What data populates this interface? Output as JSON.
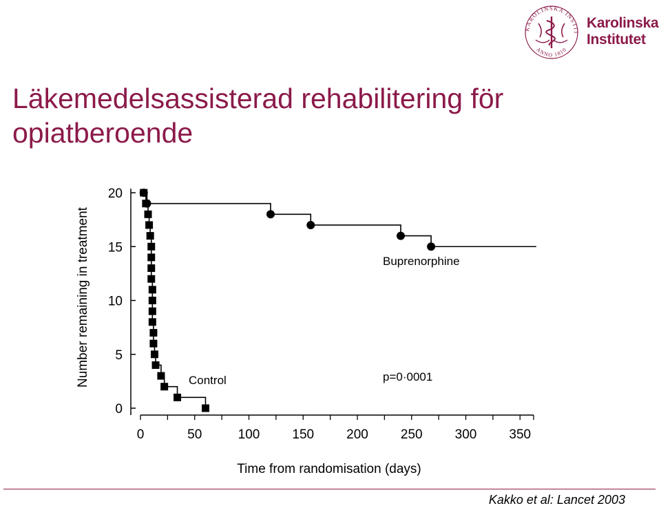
{
  "slide": {
    "title_line1": "Läkemedelsassisterad rehabilitering för",
    "title_line2": "opiatberoende",
    "citation": "Kakko et al: Lancet 2003",
    "accent_color": "#8b1a4a"
  },
  "logo": {
    "name_line1": "Karolinska",
    "name_line2": "Institutet",
    "seal_text": "KAROLINSKA INSTITUTET",
    "seal_year": "ANNO 1810",
    "seal_icon": "rod-of-asclepius-seal-icon"
  },
  "chart_data": {
    "type": "line",
    "step": true,
    "xlabel": "Time from randomisation (days)",
    "ylabel": "Number remaining in treatment",
    "xlim": [
      0,
      360
    ],
    "ylim": [
      0,
      20
    ],
    "xticks": [
      0,
      50,
      100,
      150,
      200,
      250,
      300,
      350
    ],
    "yticks": [
      0,
      5,
      10,
      15,
      20
    ],
    "grid": false,
    "annotation": "p=0·0001",
    "series": [
      {
        "name": "Buprenorphine",
        "marker": "circle",
        "points": [
          [
            3,
            20
          ],
          [
            6,
            19
          ],
          [
            120,
            18
          ],
          [
            157,
            17
          ],
          [
            240,
            16
          ],
          [
            268,
            15
          ]
        ],
        "line_end": [
          365,
          15
        ]
      },
      {
        "name": "Control",
        "marker": "square",
        "points": [
          [
            3,
            20
          ],
          [
            5,
            19
          ],
          [
            7,
            18
          ],
          [
            8,
            17
          ],
          [
            9,
            16
          ],
          [
            10,
            15
          ],
          [
            10,
            14
          ],
          [
            10,
            13
          ],
          [
            10,
            12
          ],
          [
            11,
            11
          ],
          [
            11,
            10
          ],
          [
            11,
            9
          ],
          [
            11,
            8
          ],
          [
            12,
            7
          ],
          [
            12,
            6
          ],
          [
            13,
            5
          ],
          [
            14,
            4
          ],
          [
            19,
            3
          ],
          [
            22,
            2
          ],
          [
            34,
            1
          ],
          [
            60,
            0
          ]
        ]
      }
    ]
  }
}
